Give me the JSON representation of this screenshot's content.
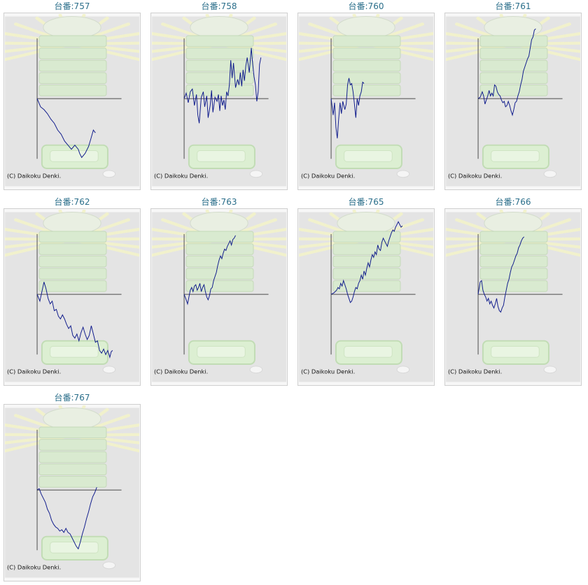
{
  "copyright": "(C) Daikoku Denki.",
  "colors": {
    "line": "#101c8c",
    "axis": "#4a4a4a",
    "title": "#2a6e8a",
    "bg": "#e4e4e4"
  },
  "chart_data": [
    {
      "type": "line",
      "title": "台番:757",
      "x": [
        0,
        5,
        10,
        15,
        20,
        25,
        30,
        35,
        40,
        45,
        50,
        55,
        60,
        62,
        65,
        70,
        75,
        78,
        82,
        85
      ],
      "y": [
        0,
        -0.12,
        -0.16,
        -0.22,
        -0.3,
        -0.36,
        -0.46,
        -0.52,
        -0.62,
        -0.68,
        -0.74,
        -0.68,
        -0.74,
        -0.8,
        -0.86,
        -0.8,
        -0.7,
        -0.6,
        -0.46,
        -0.5
      ]
    },
    {
      "type": "line",
      "title": "台番:758",
      "x": [
        0,
        3,
        6,
        9,
        12,
        15,
        18,
        20,
        22,
        25,
        28,
        30,
        33,
        35,
        38,
        40,
        42,
        45,
        48,
        50,
        52,
        54,
        56,
        58,
        60,
        62,
        64,
        66,
        68,
        70,
        72,
        75,
        78,
        80,
        82,
        84,
        86,
        88,
        90,
        92,
        95,
        98,
        100,
        102,
        104,
        106,
        108,
        110,
        112
      ],
      "y": [
        0,
        0.08,
        -0.06,
        0.1,
        0.14,
        -0.1,
        0.06,
        -0.24,
        -0.36,
        0.02,
        0.1,
        -0.12,
        0.04,
        -0.28,
        -0.1,
        0.12,
        -0.2,
        0.02,
        -0.04,
        0.06,
        -0.18,
        0.04,
        -0.1,
        -0.02,
        -0.16,
        0.1,
        0.04,
        0.2,
        0.56,
        0.3,
        0.52,
        0.16,
        0.28,
        0.2,
        0.38,
        0.18,
        0.42,
        0.26,
        0.48,
        0.6,
        0.38,
        0.74,
        0.5,
        0.32,
        0.2,
        -0.04,
        0.1,
        0.5,
        0.6
      ]
    },
    {
      "type": "line",
      "title": "台番:760",
      "x": [
        0,
        3,
        5,
        7,
        9,
        11,
        13,
        15,
        17,
        20,
        22,
        24,
        26,
        28,
        30,
        32,
        34,
        36,
        38,
        40,
        42,
        44,
        46,
        48
      ],
      "y": [
        0,
        -0.24,
        -0.06,
        -0.42,
        -0.58,
        -0.3,
        -0.06,
        -0.22,
        -0.04,
        -0.16,
        -0.08,
        0.2,
        0.3,
        0.2,
        0.22,
        0.1,
        -0.08,
        -0.28,
        0.0,
        -0.1,
        0.04,
        0.1,
        0.24,
        0.22
      ]
    },
    {
      "type": "line",
      "title": "台番:761",
      "x": [
        0,
        3,
        6,
        8,
        10,
        12,
        14,
        16,
        18,
        20,
        22,
        24,
        26,
        28,
        30,
        32,
        34,
        36,
        38,
        40,
        42,
        44,
        46,
        48,
        50,
        52,
        54,
        56,
        58,
        60,
        62,
        64,
        66,
        68,
        70,
        72,
        74,
        76,
        78,
        80,
        82,
        84
      ],
      "y": [
        0,
        0.02,
        0.1,
        0.04,
        -0.08,
        -0.02,
        0.04,
        0.12,
        0.04,
        0.08,
        0.04,
        0.2,
        0.18,
        0.1,
        0.06,
        0.04,
        -0.02,
        -0.06,
        -0.04,
        -0.12,
        -0.1,
        -0.04,
        -0.1,
        -0.18,
        -0.24,
        -0.16,
        -0.06,
        -0.04,
        0.04,
        0.1,
        0.2,
        0.28,
        0.4,
        0.46,
        0.52,
        0.58,
        0.62,
        0.74,
        0.86,
        0.9,
        1.0,
        1.02
      ]
    },
    {
      "type": "line",
      "title": "台番:762",
      "x": [
        0,
        4,
        7,
        10,
        13,
        16,
        19,
        22,
        25,
        28,
        31,
        34,
        37,
        40,
        43,
        46,
        49,
        52,
        55,
        58,
        61,
        64,
        67,
        70,
        73,
        76,
        79,
        82,
        85,
        88,
        91,
        94,
        97,
        100,
        103,
        106,
        108,
        110
      ],
      "y": [
        0,
        -0.1,
        0.04,
        0.18,
        0.08,
        -0.06,
        -0.14,
        -0.1,
        -0.24,
        -0.22,
        -0.32,
        -0.36,
        -0.3,
        -0.36,
        -0.44,
        -0.5,
        -0.46,
        -0.6,
        -0.64,
        -0.58,
        -0.68,
        -0.56,
        -0.48,
        -0.58,
        -0.66,
        -0.6,
        -0.46,
        -0.58,
        -0.7,
        -0.68,
        -0.82,
        -0.86,
        -0.8,
        -0.88,
        -0.82,
        -0.92,
        -0.84,
        -0.82
      ]
    },
    {
      "type": "line",
      "title": "台番:763",
      "x": [
        0,
        3,
        5,
        7,
        9,
        11,
        13,
        15,
        17,
        19,
        21,
        23,
        25,
        27,
        29,
        31,
        33,
        35,
        37,
        39,
        41,
        43,
        45,
        47,
        49,
        51,
        53,
        55,
        57,
        59,
        61,
        63,
        65,
        67,
        69,
        71,
        73,
        75
      ],
      "y": [
        0,
        -0.08,
        -0.14,
        -0.04,
        0.06,
        0.1,
        0.04,
        0.12,
        0.14,
        0.06,
        0.1,
        0.16,
        0.04,
        0.1,
        0.14,
        0.04,
        -0.04,
        -0.08,
        -0.02,
        0.08,
        0.1,
        0.2,
        0.26,
        0.32,
        0.42,
        0.5,
        0.56,
        0.52,
        0.6,
        0.66,
        0.64,
        0.7,
        0.74,
        0.78,
        0.72,
        0.8,
        0.82,
        0.86
      ]
    },
    {
      "type": "line",
      "title": "台番:765",
      "x": [
        0,
        4,
        8,
        10,
        12,
        14,
        16,
        18,
        20,
        22,
        24,
        26,
        28,
        30,
        32,
        34,
        36,
        38,
        40,
        42,
        44,
        46,
        48,
        50,
        52,
        54,
        56,
        58,
        60,
        62,
        64,
        66,
        68,
        70,
        72,
        74,
        76,
        78,
        80,
        82,
        84,
        86,
        88,
        90,
        92,
        94,
        96,
        98,
        100,
        102,
        104
      ],
      "y": [
        0,
        0.02,
        0.06,
        0.1,
        0.08,
        0.16,
        0.12,
        0.2,
        0.14,
        0.08,
        0.0,
        -0.06,
        -0.12,
        -0.1,
        -0.04,
        0.04,
        0.1,
        0.08,
        0.16,
        0.2,
        0.28,
        0.22,
        0.34,
        0.28,
        0.38,
        0.46,
        0.4,
        0.5,
        0.58,
        0.54,
        0.62,
        0.58,
        0.72,
        0.66,
        0.64,
        0.76,
        0.82,
        0.78,
        0.74,
        0.7,
        0.78,
        0.84,
        0.9,
        0.94,
        0.92,
        0.98,
        1.02,
        1.06,
        1.02,
        0.98,
        1.0
      ]
    },
    {
      "type": "line",
      "title": "台番:766",
      "x": [
        0,
        3,
        5,
        7,
        9,
        11,
        13,
        15,
        17,
        19,
        21,
        23,
        25,
        27,
        29,
        31,
        33,
        35,
        37,
        39,
        41,
        43,
        45,
        47,
        49,
        51,
        53,
        55,
        57,
        59,
        61,
        63,
        65,
        67
      ],
      "y": [
        0,
        0.18,
        0.2,
        0.06,
        0.0,
        -0.04,
        -0.1,
        -0.06,
        -0.14,
        -0.1,
        -0.16,
        -0.2,
        -0.14,
        -0.06,
        -0.18,
        -0.24,
        -0.26,
        -0.2,
        -0.16,
        -0.04,
        0.06,
        0.16,
        0.22,
        0.32,
        0.4,
        0.44,
        0.5,
        0.56,
        0.6,
        0.68,
        0.72,
        0.78,
        0.82,
        0.84
      ]
    },
    {
      "type": "line",
      "title": "台番:767",
      "x": [
        0,
        3,
        6,
        9,
        12,
        15,
        18,
        21,
        24,
        27,
        30,
        33,
        36,
        39,
        42,
        45,
        48,
        51,
        54,
        57,
        60,
        63,
        66,
        69,
        72,
        75,
        78,
        81,
        84,
        87
      ],
      "y": [
        0,
        0.02,
        -0.06,
        -0.12,
        -0.18,
        -0.28,
        -0.34,
        -0.44,
        -0.5,
        -0.54,
        -0.56,
        -0.6,
        -0.58,
        -0.62,
        -0.56,
        -0.62,
        -0.64,
        -0.7,
        -0.76,
        -0.82,
        -0.86,
        -0.76,
        -0.64,
        -0.54,
        -0.42,
        -0.32,
        -0.2,
        -0.1,
        -0.04,
        0.04
      ]
    }
  ]
}
